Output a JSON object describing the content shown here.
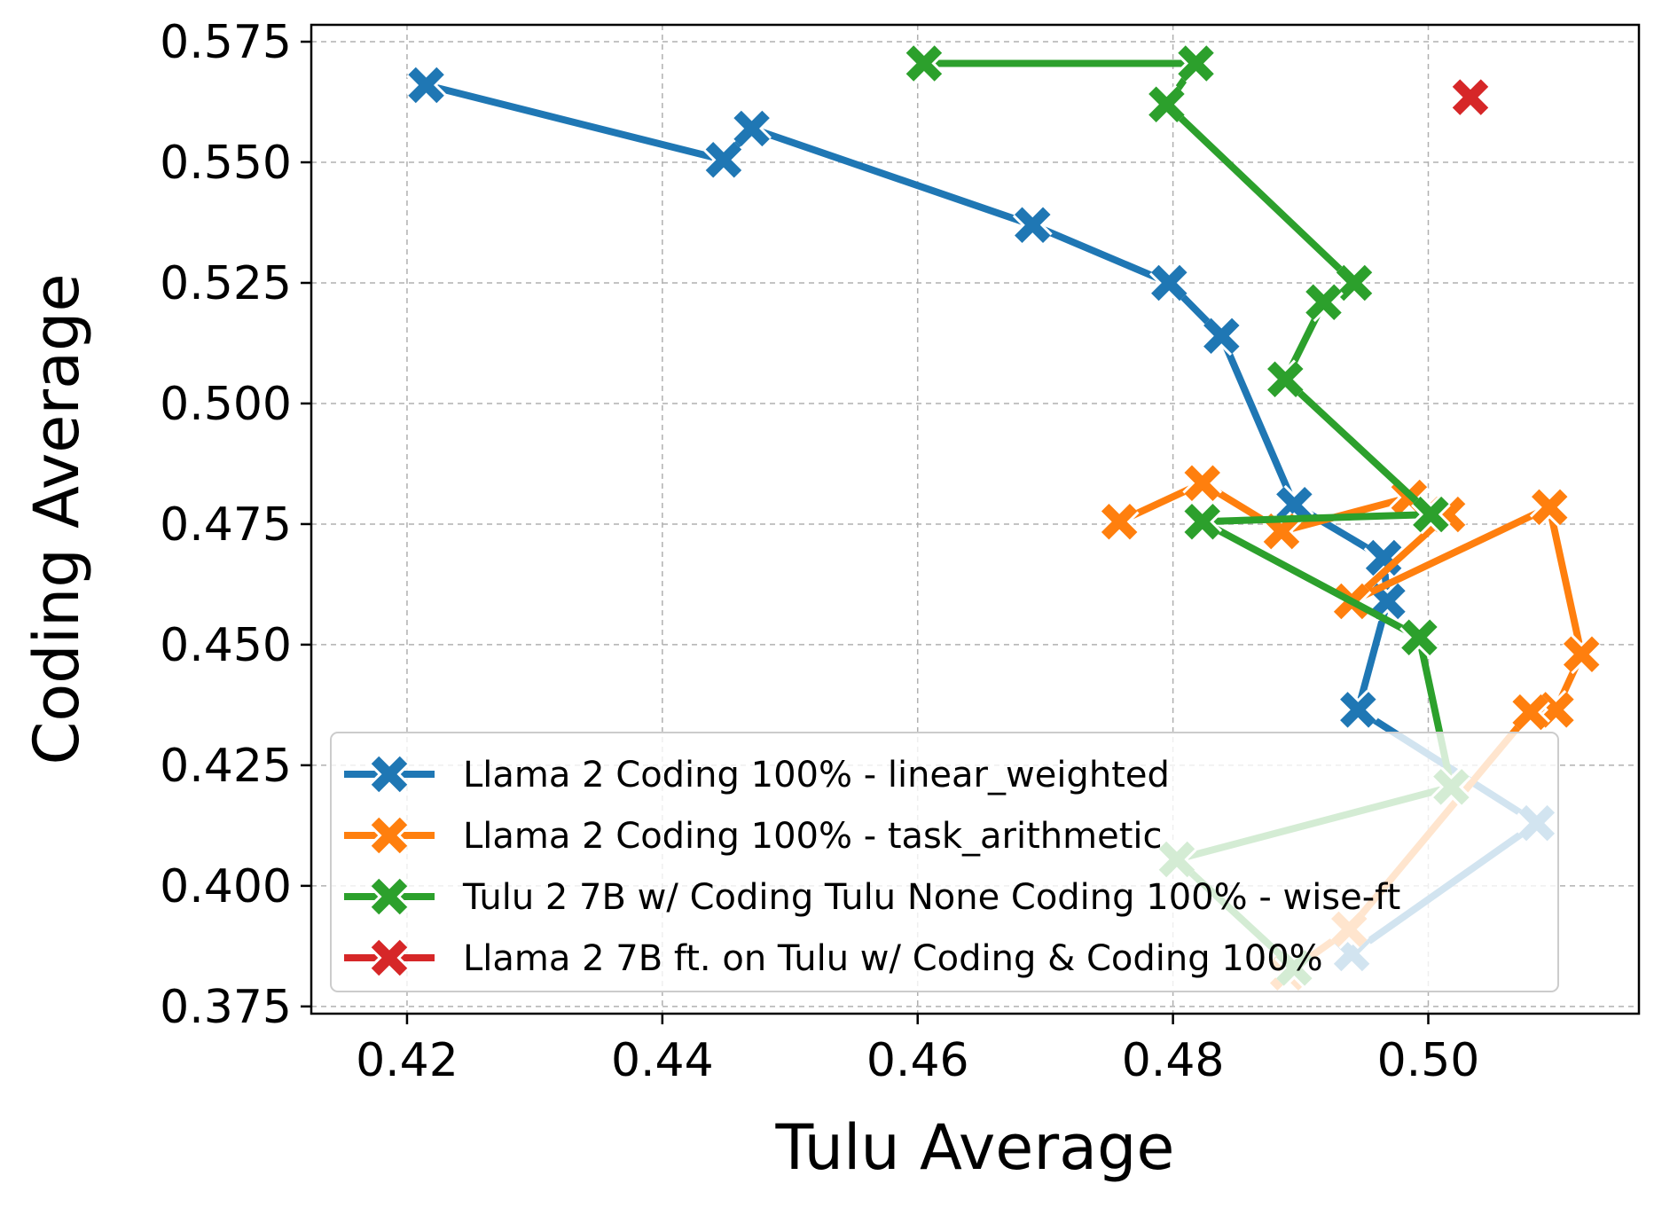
{
  "chart_data": {
    "type": "line",
    "xlabel": "Tulu Average",
    "ylabel": "Coding Average",
    "xlim": [
      0.4125,
      0.5165
    ],
    "ylim": [
      0.3735,
      0.5785
    ],
    "xticks": [
      "0.42",
      "0.44",
      "0.46",
      "0.48",
      "0.50"
    ],
    "xtick_values": [
      0.42,
      0.44,
      0.46,
      0.48,
      0.5
    ],
    "yticks": [
      "0.375",
      "0.400",
      "0.425",
      "0.450",
      "0.475",
      "0.500",
      "0.525",
      "0.550",
      "0.575"
    ],
    "ytick_values": [
      0.375,
      0.4,
      0.425,
      0.45,
      0.475,
      0.5,
      0.525,
      0.55,
      0.575
    ],
    "grid": true,
    "legend_position": "lower-right",
    "marker": "X",
    "series": [
      {
        "name": "Llama 2 Coding 100% - linear_weighted",
        "color": "#1f77b4",
        "points": [
          [
            0.4215,
            0.566
          ],
          [
            0.4448,
            0.5505
          ],
          [
            0.447,
            0.557
          ],
          [
            0.469,
            0.537
          ],
          [
            0.4797,
            0.525
          ],
          [
            0.4838,
            0.514
          ],
          [
            0.4895,
            0.479
          ],
          [
            0.4965,
            0.468
          ],
          [
            0.4968,
            0.459
          ],
          [
            0.4945,
            0.4365
          ],
          [
            0.5085,
            0.413
          ],
          [
            0.494,
            0.386
          ]
        ]
      },
      {
        "name": "Llama 2 Coding 100% - task_arithmetic",
        "color": "#ff7f0e",
        "points": [
          [
            0.4758,
            0.4755
          ],
          [
            0.4823,
            0.4835
          ],
          [
            0.4885,
            0.4735
          ],
          [
            0.4985,
            0.4805
          ],
          [
            0.5015,
            0.477
          ],
          [
            0.494,
            0.459
          ],
          [
            0.5095,
            0.4785
          ],
          [
            0.512,
            0.448
          ],
          [
            0.51,
            0.4365
          ],
          [
            0.508,
            0.436
          ],
          [
            0.4938,
            0.391
          ],
          [
            0.489,
            0.382
          ]
        ]
      },
      {
        "name": "Tulu 2 7B w/ Coding Tulu None Coding 100% - wise-ft",
        "color": "#2ca02c",
        "points": [
          [
            0.4605,
            0.5705
          ],
          [
            0.4818,
            0.5705
          ],
          [
            0.4795,
            0.562
          ],
          [
            0.4942,
            0.525
          ],
          [
            0.4918,
            0.521
          ],
          [
            0.4888,
            0.505
          ],
          [
            0.5002,
            0.477
          ],
          [
            0.4823,
            0.4755
          ],
          [
            0.4993,
            0.4515
          ],
          [
            0.5018,
            0.4205
          ],
          [
            0.4803,
            0.4055
          ],
          [
            0.4895,
            0.383
          ]
        ]
      },
      {
        "name": "Llama 2 7B ft. on Tulu w/ Coding & Coding 100%",
        "color": "#d62728",
        "points": [
          [
            0.5033,
            0.5635
          ]
        ]
      }
    ]
  }
}
